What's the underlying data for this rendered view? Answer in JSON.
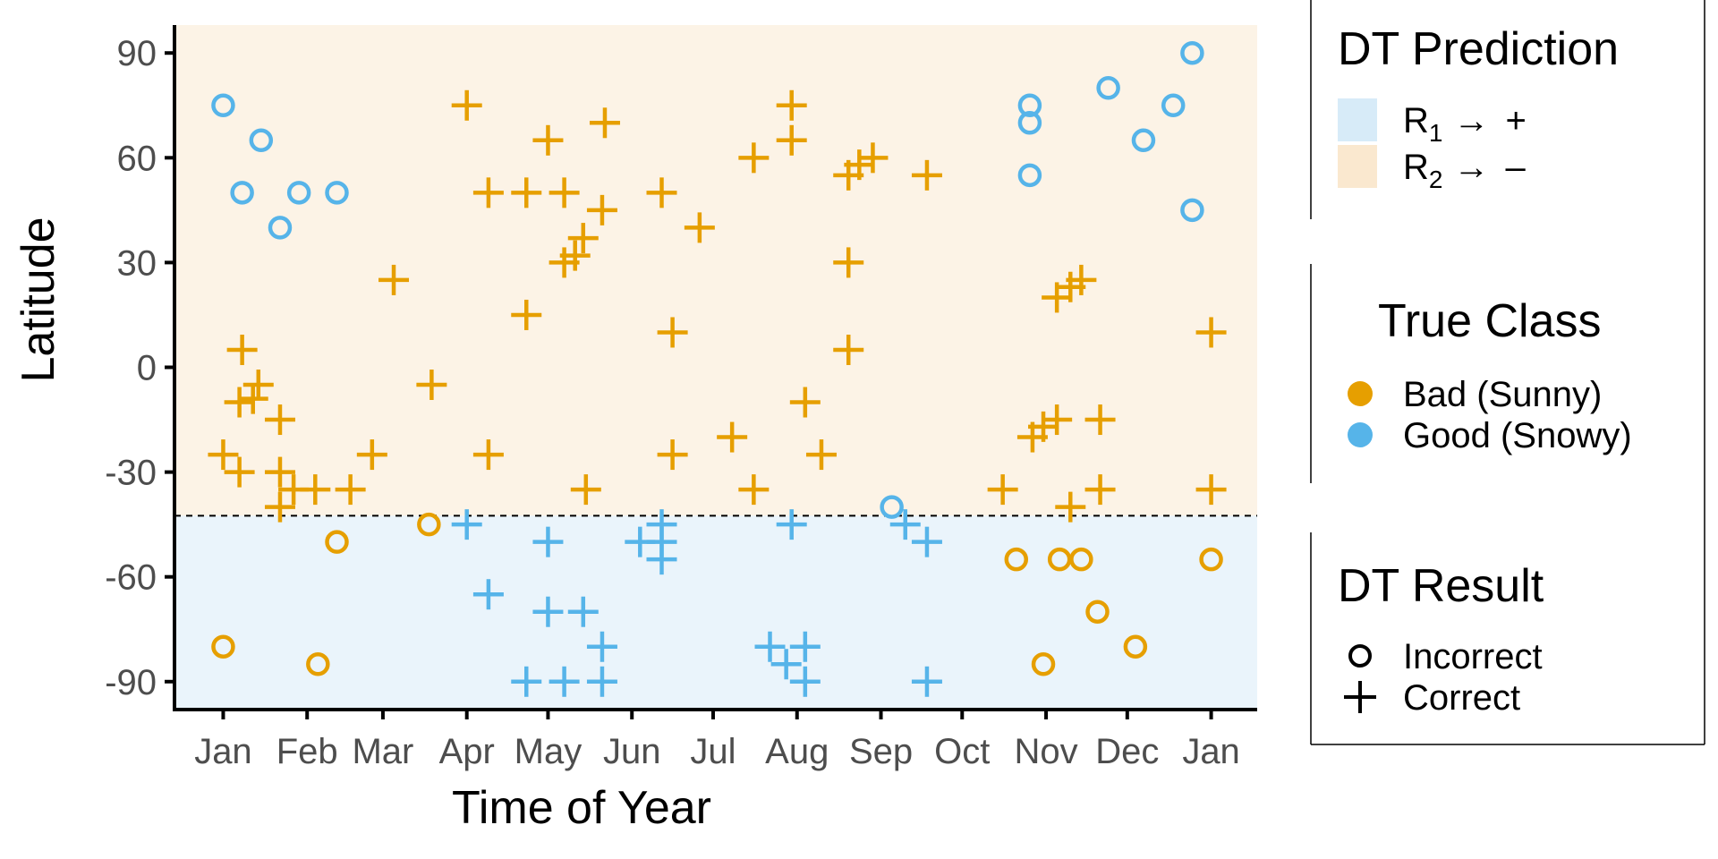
{
  "colors": {
    "bad_sunny": "#E69F00",
    "good_snowy": "#56B4E9",
    "region_r1": "#EAF4FB",
    "region_r2": "#FCF3E6",
    "legend_r1": "#D7EBF8",
    "legend_r2": "#FAE8CF"
  },
  "chart_data": {
    "type": "scatter",
    "xlabel": "Time of Year",
    "ylabel": "Latitude",
    "x_tick_labels": [
      "Jan",
      "Feb",
      "Mar",
      "Apr",
      "May",
      "Jun",
      "Jul",
      "Aug",
      "Sep",
      "Oct",
      "Nov",
      "Dec",
      "Jan"
    ],
    "x_tick_days": [
      1,
      32,
      60,
      91,
      121,
      152,
      182,
      213,
      244,
      274,
      305,
      335,
      366
    ],
    "xlim": [
      -17,
      383
    ],
    "ylim": [
      -98,
      98
    ],
    "y_ticks": [
      90,
      60,
      30,
      0,
      -30,
      -60,
      -90
    ],
    "y_tick_labels": [
      "90",
      "60",
      "30",
      "0",
      "-30",
      "-60",
      "-90"
    ],
    "decision_threshold_latitude": -42.5,
    "grid": false,
    "legend_position": "right",
    "legend": {
      "prediction_title": "DT Prediction",
      "prediction_items": [
        {
          "region": "R",
          "subscript": "1",
          "arrow": "→",
          "sign": "+"
        },
        {
          "region": "R",
          "subscript": "2",
          "arrow": "→",
          "sign": "–"
        }
      ],
      "class_title": "True Class",
      "class_items": [
        "Bad (Sunny)",
        "Good (Snowy)"
      ],
      "result_title": "DT Result",
      "result_items": [
        "Incorrect",
        "Correct"
      ]
    },
    "series": [
      {
        "name": "Bad (Sunny) – Correct",
        "class": "bad",
        "marker": "plus",
        "points": [
          [
            1,
            -25
          ],
          [
            7,
            -30
          ],
          [
            7,
            -10
          ],
          [
            8,
            5
          ],
          [
            14,
            -5
          ],
          [
            12,
            -9
          ],
          [
            22,
            -15
          ],
          [
            22,
            -30
          ],
          [
            27,
            -35
          ],
          [
            22,
            -40
          ],
          [
            35,
            -35
          ],
          [
            48,
            -35
          ],
          [
            56,
            -25
          ],
          [
            64,
            25
          ],
          [
            78,
            -5
          ],
          [
            91,
            75
          ],
          [
            99,
            50
          ],
          [
            99,
            -25
          ],
          [
            113,
            50
          ],
          [
            113,
            15
          ],
          [
            121,
            65
          ],
          [
            127,
            50
          ],
          [
            127,
            30
          ],
          [
            131,
            32
          ],
          [
            134,
            37
          ],
          [
            135,
            -35
          ],
          [
            141,
            45
          ],
          [
            142,
            70
          ],
          [
            163,
            50
          ],
          [
            167,
            10
          ],
          [
            167,
            -25
          ],
          [
            177,
            40
          ],
          [
            189,
            -20
          ],
          [
            197,
            60
          ],
          [
            197,
            -35
          ],
          [
            211,
            65
          ],
          [
            211,
            75
          ],
          [
            216,
            -10
          ],
          [
            222,
            -25
          ],
          [
            232,
            55
          ],
          [
            236,
            58
          ],
          [
            241,
            60
          ],
          [
            232,
            30
          ],
          [
            232,
            5
          ],
          [
            261,
            55
          ],
          [
            289,
            -35
          ],
          [
            300,
            -20
          ],
          [
            304,
            -17
          ],
          [
            309,
            -15
          ],
          [
            309,
            20
          ],
          [
            314,
            23
          ],
          [
            318,
            25
          ],
          [
            314,
            -40
          ],
          [
            325,
            -15
          ],
          [
            325,
            -35
          ],
          [
            366,
            10
          ],
          [
            366,
            -35
          ]
        ]
      },
      {
        "name": "Good (Snowy) – Correct",
        "class": "good",
        "marker": "plus",
        "points": [
          [
            91,
            -45
          ],
          [
            99,
            -65
          ],
          [
            113,
            -90
          ],
          [
            121,
            -50
          ],
          [
            121,
            -70
          ],
          [
            127,
            -90
          ],
          [
            134,
            -70
          ],
          [
            141,
            -80
          ],
          [
            141,
            -90
          ],
          [
            155,
            -50
          ],
          [
            163,
            -45
          ],
          [
            163,
            -50
          ],
          [
            163,
            -55
          ],
          [
            203,
            -80
          ],
          [
            209,
            -85
          ],
          [
            211,
            -45
          ],
          [
            216,
            -80
          ],
          [
            216,
            -90
          ],
          [
            253,
            -45
          ],
          [
            261,
            -50
          ],
          [
            261,
            -90
          ]
        ]
      },
      {
        "name": "Bad (Sunny) – Incorrect",
        "class": "bad",
        "marker": "circle",
        "points": [
          [
            1,
            -80
          ],
          [
            36,
            -85
          ],
          [
            43,
            -50
          ],
          [
            77,
            -45
          ],
          [
            294,
            -55
          ],
          [
            304,
            -85
          ],
          [
            310,
            -55
          ],
          [
            318,
            -55
          ],
          [
            324,
            -70
          ],
          [
            338,
            -80
          ],
          [
            366,
            -55
          ]
        ]
      },
      {
        "name": "Good (Snowy) – Incorrect",
        "class": "good",
        "marker": "circle",
        "points": [
          [
            1,
            75
          ],
          [
            8,
            50
          ],
          [
            22,
            40
          ],
          [
            15,
            65
          ],
          [
            29,
            50
          ],
          [
            43,
            50
          ],
          [
            248,
            -40
          ],
          [
            299,
            75
          ],
          [
            299,
            70
          ],
          [
            299,
            55
          ],
          [
            328,
            80
          ],
          [
            341,
            65
          ],
          [
            352,
            75
          ],
          [
            359,
            90
          ],
          [
            359,
            45
          ]
        ]
      }
    ]
  }
}
